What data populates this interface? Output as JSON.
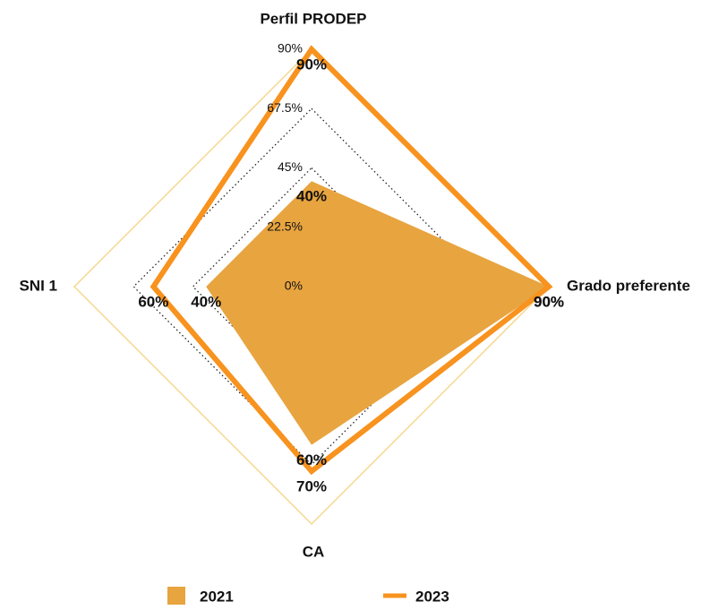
{
  "chart_data": {
    "type": "radar",
    "categories": [
      "Perfil PRODEP",
      "Grado preferente",
      "CA",
      "SNI 1"
    ],
    "ylim": [
      0,
      90
    ],
    "yticks": [
      {
        "value": 0,
        "label": "0%"
      },
      {
        "value": 22.5,
        "label": "22.5%"
      },
      {
        "value": 45,
        "label": "45%"
      },
      {
        "value": 67.5,
        "label": "67.5%"
      },
      {
        "value": 90,
        "label": "90%"
      }
    ],
    "grid": true,
    "legend": "bottom",
    "series": [
      {
        "name": "2021",
        "color": "#e8a43f",
        "style": "area",
        "values": [
          40,
          90,
          60,
          40
        ],
        "value_labels": [
          "40%",
          "90%",
          "60%",
          "40%"
        ]
      },
      {
        "name": "2023",
        "color": "#f7931e",
        "style": "line",
        "values": [
          90,
          90,
          70,
          60
        ],
        "value_labels": [
          "90%",
          "90%",
          "70%",
          "60%"
        ]
      }
    ]
  }
}
